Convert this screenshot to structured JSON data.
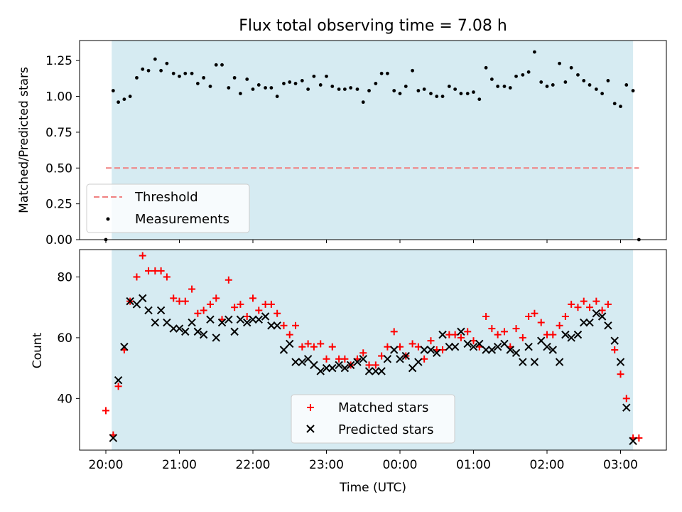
{
  "chart_data": [
    {
      "type": "scatter",
      "title": "Flux total observing time = 7.08 h",
      "xlabel": "",
      "ylabel": "Matched/Predicted stars",
      "ylim": [
        0,
        1.39
      ],
      "yticks": [
        "0.00",
        "0.25",
        "0.50",
        "0.75",
        "1.00",
        "1.25"
      ],
      "shaded_span_hours": [
        20.08,
        27.17
      ],
      "threshold": {
        "name": "Threshold",
        "value": 0.5,
        "x_hours": [
          20.0,
          27.25
        ],
        "color": "#f08080"
      },
      "legend": {
        "position": "lower-left",
        "entries": [
          "Threshold",
          "Measurements"
        ]
      },
      "series": [
        {
          "name": "Measurements",
          "marker": "dot",
          "color": "#000000",
          "x_hours": [
            20.0,
            20.1,
            20.17,
            20.25,
            20.33,
            20.42,
            20.5,
            20.58,
            20.67,
            20.75,
            20.83,
            20.92,
            21.0,
            21.08,
            21.17,
            21.25,
            21.33,
            21.42,
            21.5,
            21.58,
            21.67,
            21.75,
            21.83,
            21.92,
            22.0,
            22.08,
            22.17,
            22.25,
            22.33,
            22.42,
            22.5,
            22.58,
            22.67,
            22.75,
            22.83,
            22.92,
            23.0,
            23.08,
            23.17,
            23.25,
            23.33,
            23.42,
            23.5,
            23.58,
            23.67,
            23.75,
            23.83,
            23.92,
            24.0,
            24.08,
            24.17,
            24.25,
            24.33,
            24.42,
            24.5,
            24.58,
            24.67,
            24.75,
            24.83,
            24.92,
            25.0,
            25.08,
            25.17,
            25.25,
            25.33,
            25.42,
            25.5,
            25.58,
            25.67,
            25.75,
            25.83,
            25.92,
            26.0,
            26.08,
            26.17,
            26.25,
            26.33,
            26.42,
            26.5,
            26.58,
            26.67,
            26.75,
            26.83,
            26.92,
            27.0,
            27.08,
            27.17,
            27.25
          ],
          "values": [
            0.0,
            1.04,
            0.96,
            0.98,
            1.0,
            1.13,
            1.19,
            1.18,
            1.26,
            1.18,
            1.23,
            1.16,
            1.14,
            1.16,
            1.16,
            1.09,
            1.13,
            1.07,
            1.22,
            1.22,
            1.06,
            1.13,
            1.02,
            1.12,
            1.05,
            1.08,
            1.06,
            1.06,
            1.0,
            1.09,
            1.1,
            1.09,
            1.11,
            1.05,
            1.14,
            1.08,
            1.14,
            1.07,
            1.05,
            1.05,
            1.06,
            1.05,
            0.96,
            1.04,
            1.09,
            1.16,
            1.16,
            1.04,
            1.02,
            1.07,
            1.18,
            1.04,
            1.05,
            1.02,
            1.0,
            1.0,
            1.07,
            1.05,
            1.02,
            1.02,
            1.03,
            0.98,
            1.2,
            1.12,
            1.07,
            1.07,
            1.06,
            1.14,
            1.15,
            1.17,
            1.31,
            1.1,
            1.07,
            1.08,
            1.23,
            1.1,
            1.2,
            1.15,
            1.11,
            1.08,
            1.05,
            1.02,
            1.11,
            0.95,
            0.93,
            1.08,
            1.04,
            0.0
          ]
        }
      ]
    },
    {
      "type": "scatter",
      "title": "",
      "xlabel": "Time (UTC)",
      "ylabel": "Count",
      "ylim": [
        23,
        89
      ],
      "yticks": [
        "40",
        "60",
        "80"
      ],
      "xticks": [
        "20:00",
        "21:00",
        "22:00",
        "23:00",
        "00:00",
        "01:00",
        "02:00",
        "03:00"
      ],
      "shaded_span_hours": [
        20.08,
        27.17
      ],
      "legend": {
        "position": "lower-center",
        "entries": [
          "Matched stars",
          "Predicted stars"
        ]
      },
      "series": [
        {
          "name": "Matched stars",
          "marker": "plus",
          "color": "#ff0000",
          "x_hours": [
            20.0,
            20.1,
            20.17,
            20.25,
            20.33,
            20.42,
            20.5,
            20.58,
            20.67,
            20.75,
            20.83,
            20.92,
            21.0,
            21.08,
            21.17,
            21.25,
            21.33,
            21.42,
            21.5,
            21.58,
            21.67,
            21.75,
            21.83,
            21.92,
            22.0,
            22.08,
            22.17,
            22.25,
            22.33,
            22.42,
            22.5,
            22.58,
            22.67,
            22.75,
            22.83,
            22.92,
            23.0,
            23.08,
            23.17,
            23.25,
            23.33,
            23.42,
            23.5,
            23.58,
            23.67,
            23.75,
            23.83,
            23.92,
            24.0,
            24.08,
            24.17,
            24.25,
            24.33,
            24.42,
            24.5,
            24.58,
            24.67,
            24.75,
            24.83,
            24.92,
            25.0,
            25.08,
            25.17,
            25.25,
            25.33,
            25.42,
            25.5,
            25.58,
            25.67,
            25.75,
            25.83,
            25.92,
            26.0,
            26.08,
            26.17,
            26.25,
            26.33,
            26.42,
            26.5,
            26.58,
            26.67,
            26.75,
            26.83,
            26.92,
            27.0,
            27.08,
            27.17,
            27.25
          ],
          "values": [
            36,
            28,
            44,
            56,
            72,
            80,
            87,
            82,
            82,
            82,
            80,
            73,
            72,
            72,
            76,
            68,
            69,
            71,
            73,
            66,
            79,
            70,
            71,
            67,
            73,
            69,
            71,
            71,
            68,
            64,
            61,
            64,
            57,
            58,
            57,
            58,
            53,
            57,
            53,
            53,
            51,
            53,
            55,
            51,
            51,
            54,
            57,
            62,
            57,
            54,
            58,
            57,
            53,
            59,
            56,
            56,
            61,
            61,
            60,
            62,
            59,
            57,
            67,
            63,
            61,
            62,
            57,
            63,
            60,
            67,
            68,
            65,
            61,
            61,
            64,
            67,
            71,
            70,
            72,
            70,
            72,
            69,
            71,
            56,
            48,
            40,
            27,
            27
          ]
        },
        {
          "name": "Predicted stars",
          "marker": "x",
          "color": "#000000",
          "x_hours": [
            20.1,
            20.17,
            20.25,
            20.33,
            20.42,
            20.5,
            20.58,
            20.67,
            20.75,
            20.83,
            20.92,
            21.0,
            21.08,
            21.17,
            21.25,
            21.33,
            21.42,
            21.5,
            21.58,
            21.67,
            21.75,
            21.83,
            21.92,
            22.0,
            22.08,
            22.17,
            22.25,
            22.33,
            22.42,
            22.5,
            22.58,
            22.67,
            22.75,
            22.83,
            22.92,
            23.0,
            23.08,
            23.17,
            23.25,
            23.33,
            23.42,
            23.5,
            23.58,
            23.67,
            23.75,
            23.83,
            23.92,
            24.0,
            24.08,
            24.17,
            24.25,
            24.33,
            24.42,
            24.5,
            24.58,
            24.67,
            24.75,
            24.83,
            24.92,
            25.0,
            25.08,
            25.17,
            25.25,
            25.33,
            25.42,
            25.5,
            25.58,
            25.67,
            25.75,
            25.83,
            25.92,
            26.0,
            26.08,
            26.17,
            26.25,
            26.33,
            26.42,
            26.5,
            26.58,
            26.67,
            26.75,
            26.83,
            26.92,
            27.0,
            27.08,
            27.17
          ],
          "values": [
            27,
            46,
            57,
            72,
            71,
            73,
            69,
            65,
            69,
            65,
            63,
            63,
            62,
            65,
            62,
            61,
            66,
            60,
            65,
            66,
            62,
            66,
            65,
            66,
            66,
            67,
            64,
            64,
            56,
            58,
            52,
            52,
            53,
            51,
            49,
            50,
            50,
            51,
            50,
            51,
            52,
            53,
            49,
            49,
            49,
            53,
            56,
            53,
            54,
            50,
            52,
            56,
            56,
            55,
            61,
            57,
            57,
            62,
            58,
            57,
            58,
            56,
            56,
            57,
            58,
            56,
            55,
            52,
            57,
            52,
            59,
            57,
            56,
            52,
            61,
            60,
            61,
            65,
            65,
            68,
            67,
            64,
            59,
            52,
            37,
            26
          ]
        }
      ]
    }
  ]
}
